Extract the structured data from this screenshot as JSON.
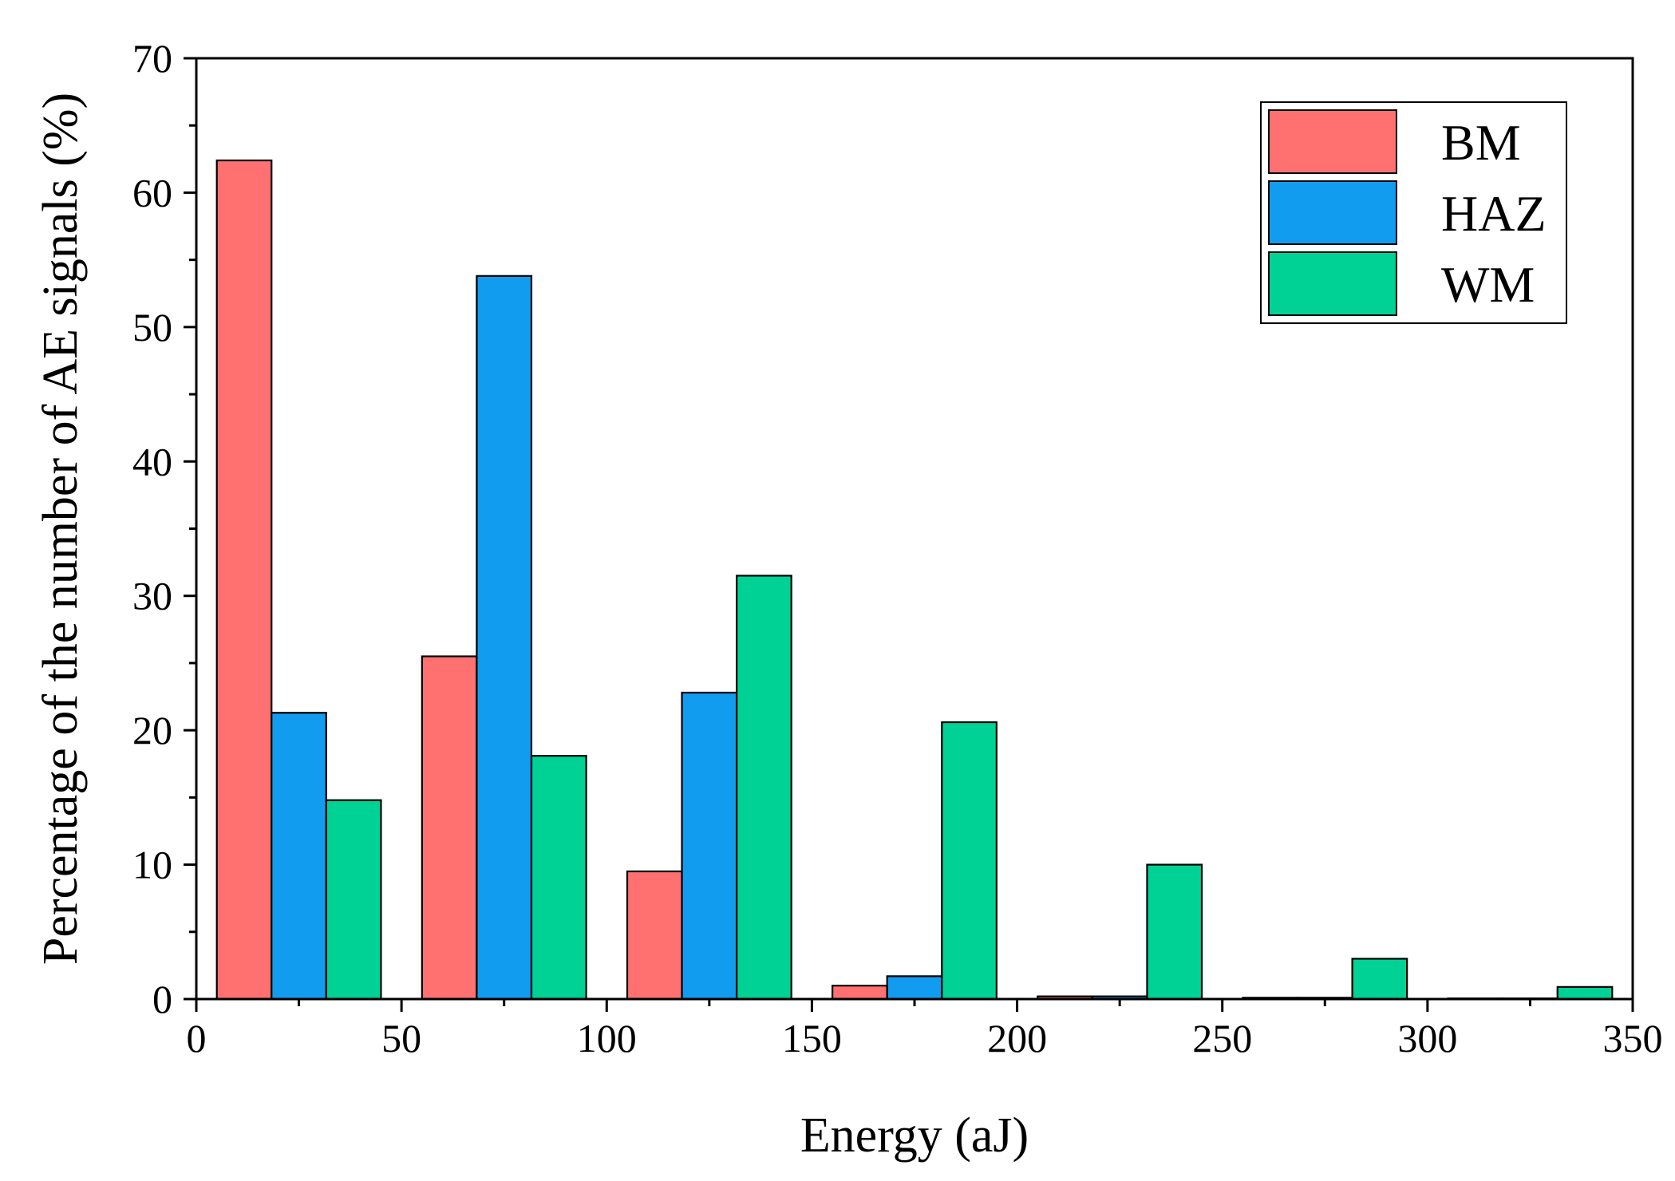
{
  "chart_data": {
    "type": "bar",
    "title": "",
    "xlabel": "Energy (aJ)",
    "ylabel": "Percentage of the number of AE signals (%)",
    "xlim": [
      0,
      350
    ],
    "ylim": [
      0,
      70
    ],
    "x_ticks": [
      "0",
      "50",
      "100",
      "150",
      "200",
      "250",
      "300",
      "350"
    ],
    "y_ticks": [
      "0",
      "10",
      "20",
      "30",
      "40",
      "50",
      "60",
      "70"
    ],
    "grid": false,
    "legend_position": "top-right",
    "categories": [
      "5-45",
      "55-95",
      "105-145",
      "155-195",
      "205-245",
      "255-295",
      "305-345"
    ],
    "bar_width": 13.33,
    "series": [
      {
        "name": "BM",
        "color": "#FF7070",
        "starts": [
          5,
          55,
          105,
          155,
          205,
          255,
          305
        ],
        "values": [
          62.4,
          25.5,
          9.5,
          1.0,
          0.2,
          0.1,
          0.05
        ]
      },
      {
        "name": "HAZ",
        "color": "#119CF0",
        "starts": [
          18.33,
          68.33,
          118.33,
          168.33,
          218.33,
          268.33,
          318.33
        ],
        "values": [
          21.3,
          53.8,
          22.8,
          1.7,
          0.2,
          0.1,
          0.05
        ]
      },
      {
        "name": "WM",
        "color": "#00D295",
        "starts": [
          31.67,
          81.67,
          131.67,
          181.67,
          231.67,
          281.67,
          331.67
        ],
        "values": [
          14.8,
          18.1,
          31.5,
          20.6,
          10.0,
          3.0,
          0.9
        ]
      }
    ]
  }
}
